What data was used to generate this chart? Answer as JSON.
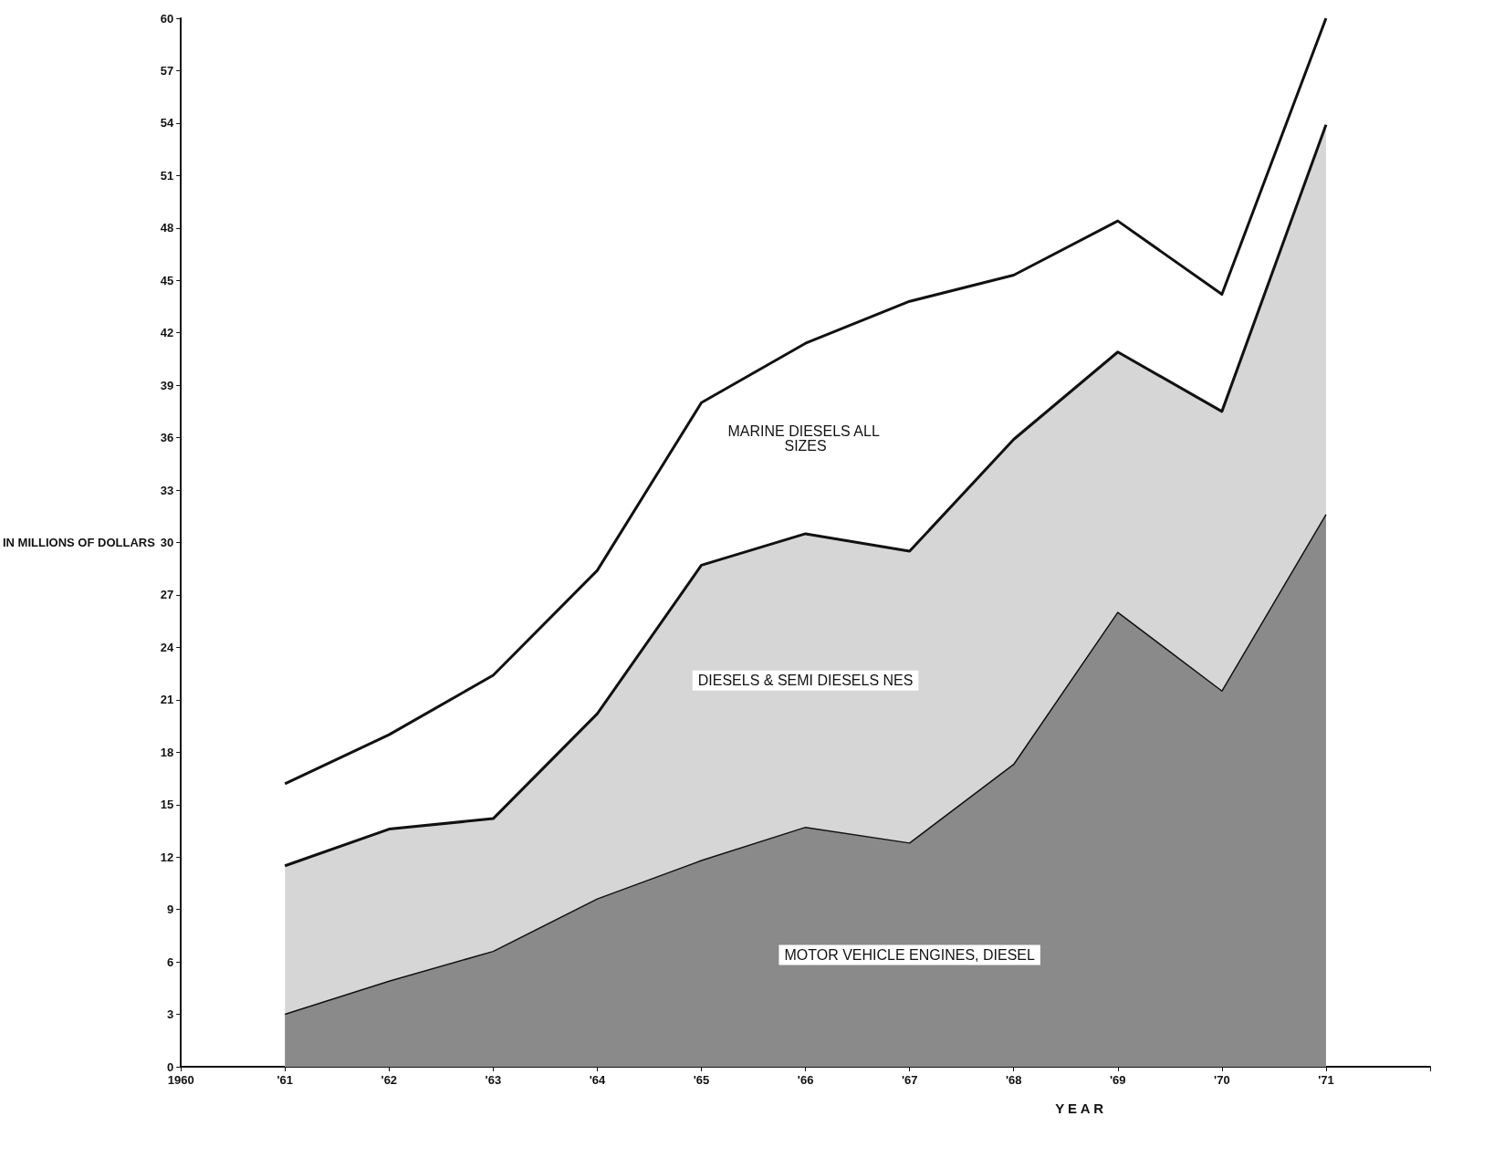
{
  "chart_data": {
    "type": "area",
    "stacked": true,
    "xlabel": "Y E A R",
    "ylabel": "IN MILLIONS OF DOLLARS",
    "x": [
      1961,
      1962,
      1963,
      1964,
      1965,
      1966,
      1967,
      1968,
      1969,
      1970,
      1971
    ],
    "series": [
      {
        "name": "MOTOR VEHICLE ENGINES, DIESEL",
        "color": "#8a8a8a",
        "values": [
          3,
          4.9,
          6.6,
          9.6,
          11.8,
          13.7,
          12.8,
          17.3,
          26,
          21.5,
          31.6
        ]
      },
      {
        "name": "DIESELS & SEMI DIESELS NES",
        "color": "#d6d6d6",
        "values": [
          8.5,
          8.7,
          7.6,
          10.6,
          16.9,
          16.8,
          16.7,
          18.6,
          14.9,
          16.0,
          22.3
        ]
      },
      {
        "name": "MARINE DIESELS ALL SIZES",
        "color": "#ffffff",
        "values": [
          4.7,
          5.4,
          8.2,
          8.2,
          9.3,
          10.9,
          14.3,
          9.4,
          7.5,
          6.7,
          6.1
        ]
      }
    ],
    "xlim": [
      1960,
      1972
    ],
    "xticks": [
      1960,
      {
        "value": 1961,
        "label": "'61"
      },
      {
        "value": 1962,
        "label": "'62"
      },
      {
        "value": 1963,
        "label": "'63"
      },
      {
        "value": 1964,
        "label": "'64"
      },
      {
        "value": 1965,
        "label": "'65"
      },
      {
        "value": 1966,
        "label": "'66"
      },
      {
        "value": 1967,
        "label": "'67"
      },
      {
        "value": 1968,
        "label": "'68"
      },
      {
        "value": 1969,
        "label": "'69"
      },
      {
        "value": 1970,
        "label": "'70"
      },
      {
        "value": 1971,
        "label": "'71"
      },
      {
        "value": 1972,
        "label": null
      }
    ],
    "ylim": [
      0,
      60
    ],
    "yticks": [
      0,
      3,
      6,
      9,
      12,
      15,
      18,
      21,
      24,
      27,
      30,
      33,
      36,
      39,
      42,
      45,
      48,
      51,
      54,
      57,
      60
    ],
    "grid": false,
    "legend": false,
    "marker": "none",
    "line_style": "solid"
  }
}
